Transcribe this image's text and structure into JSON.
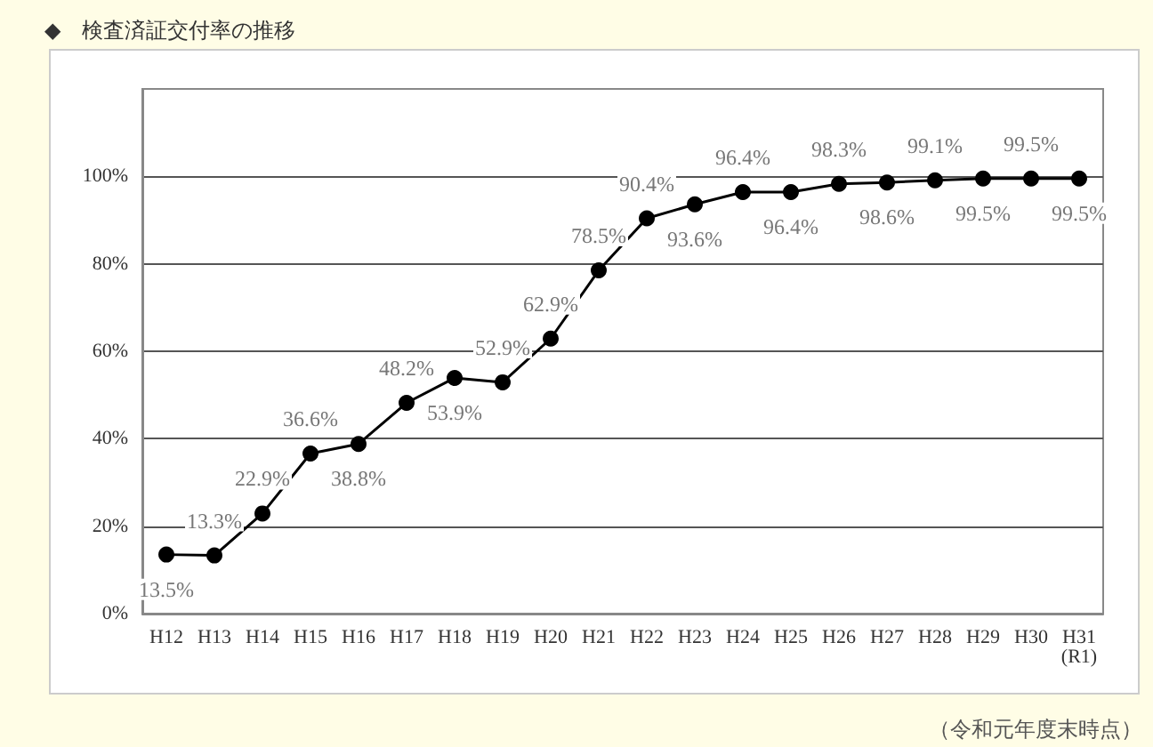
{
  "chart_data": {
    "type": "line",
    "title": "◆　検査済証交付率の推移",
    "annotations": [
      "（令和元年度末時点）"
    ],
    "categories": [
      "H12",
      "H13",
      "H14",
      "H15",
      "H16",
      "H17",
      "H18",
      "H19",
      "H20",
      "H21",
      "H22",
      "H23",
      "H24",
      "H25",
      "H26",
      "H27",
      "H28",
      "H29",
      "H30",
      "H31\n(R1)"
    ],
    "series": [
      {
        "color": "#000000",
        "values": [
          13.5,
          13.3,
          22.9,
          36.6,
          38.8,
          48.2,
          53.9,
          52.9,
          62.9,
          78.5,
          90.4,
          93.6,
          96.4,
          96.4,
          98.3,
          98.6,
          99.1,
          99.5,
          99.5,
          99.5
        ],
        "value_labels": [
          "13.5%",
          "13.3%",
          "22.9%",
          "36.6%",
          "38.8%",
          "48.2%",
          "53.9%",
          "52.9%",
          "62.9%",
          "78.5%",
          "90.4%",
          "93.6%",
          "96.4%",
          "96.4%",
          "98.3%",
          "98.6%",
          "99.1%",
          "99.5%",
          "99.5%",
          "99.5%"
        ]
      }
    ],
    "ylim": [
      0,
      120
    ],
    "yticks": [
      {
        "value": 0,
        "label": "0%"
      },
      {
        "value": 20,
        "label": "20%"
      },
      {
        "value": 40,
        "label": "40%"
      },
      {
        "value": 60,
        "label": "60%"
      },
      {
        "value": 80,
        "label": "80%"
      },
      {
        "value": 100,
        "label": "100%"
      }
    ],
    "grid": "y",
    "marker": "circle",
    "line_style": "solid"
  }
}
